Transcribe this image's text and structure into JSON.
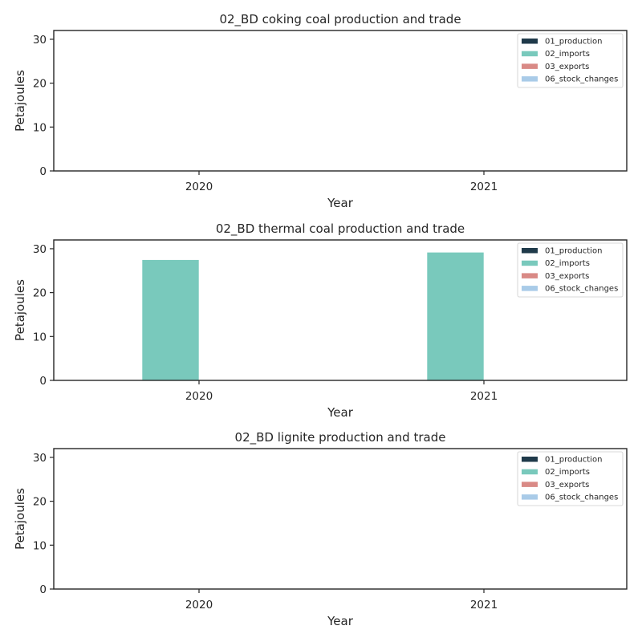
{
  "colors": {
    "01_production": "#1f3a4a",
    "02_imports": "#79c9bc",
    "03_exports": "#d98a86",
    "06_stock_changes": "#a9cbe8"
  },
  "chart_data": [
    {
      "type": "bar",
      "title": "02_BD coking coal production and trade",
      "xlabel": "Year",
      "ylabel": "Petajoules",
      "categories": [
        "2020",
        "2021"
      ],
      "ylim": [
        0,
        32
      ],
      "yticks": [
        0,
        10,
        20,
        30
      ],
      "legend_position": "top-right",
      "series": [
        {
          "name": "01_production",
          "values": [
            0,
            0
          ]
        },
        {
          "name": "02_imports",
          "values": [
            0,
            0
          ]
        },
        {
          "name": "03_exports",
          "values": [
            0,
            0
          ]
        },
        {
          "name": "06_stock_changes",
          "values": [
            0,
            0
          ]
        }
      ]
    },
    {
      "type": "bar",
      "title": "02_BD thermal coal production and trade",
      "xlabel": "Year",
      "ylabel": "Petajoules",
      "categories": [
        "2020",
        "2021"
      ],
      "ylim": [
        0,
        32
      ],
      "yticks": [
        0,
        10,
        20,
        30
      ],
      "legend_position": "top-right",
      "series": [
        {
          "name": "01_production",
          "values": [
            0,
            0
          ]
        },
        {
          "name": "02_imports",
          "values": [
            27.5,
            29.2
          ]
        },
        {
          "name": "03_exports",
          "values": [
            0,
            0
          ]
        },
        {
          "name": "06_stock_changes",
          "values": [
            0,
            0
          ]
        }
      ]
    },
    {
      "type": "bar",
      "title": "02_BD lignite production and trade",
      "xlabel": "Year",
      "ylabel": "Petajoules",
      "categories": [
        "2020",
        "2021"
      ],
      "ylim": [
        0,
        32
      ],
      "yticks": [
        0,
        10,
        20,
        30
      ],
      "legend_position": "top-right",
      "series": [
        {
          "name": "01_production",
          "values": [
            0,
            0
          ]
        },
        {
          "name": "02_imports",
          "values": [
            0,
            0
          ]
        },
        {
          "name": "03_exports",
          "values": [
            0,
            0
          ]
        },
        {
          "name": "06_stock_changes",
          "values": [
            0,
            0
          ]
        }
      ]
    }
  ]
}
